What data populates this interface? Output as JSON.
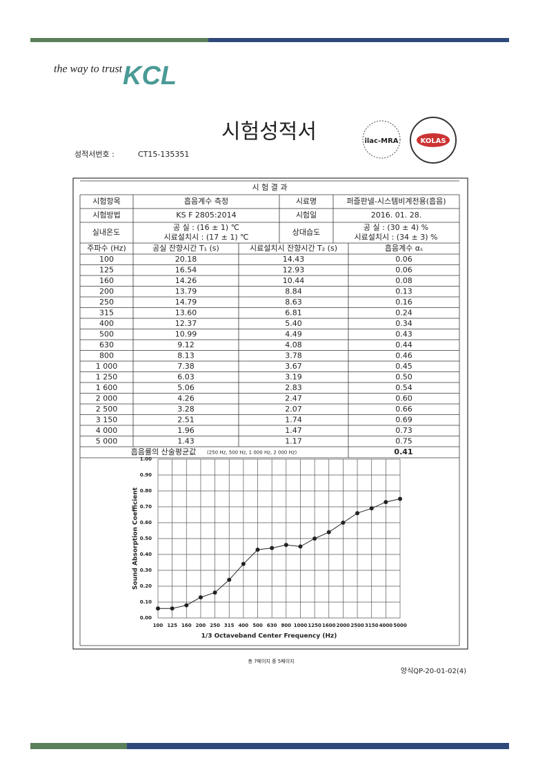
{
  "header": {
    "slogan": "the way to trust",
    "logo": "KCL",
    "title": "시험성적서",
    "report_no_label": "성적서번호 :",
    "report_no": "CT15-135351",
    "badges": [
      "ilac-MRA",
      "KOLAS"
    ]
  },
  "table": {
    "title": "시 험 결 과",
    "info": [
      [
        "시험항목",
        "흡음계수 측정",
        "시료명",
        "퍼즐판넬-시스템비계전용(흡음)"
      ],
      [
        "시험방법",
        "KS F 2805:2014",
        "시험일",
        "2016. 01. 28."
      ]
    ],
    "conditions": {
      "temp_label": "실내온도",
      "temp": [
        "공      실 :  (16 ± 1) ℃",
        "시료설치시 :  (17 ± 1) ℃"
      ],
      "humid_label": "상대습도",
      "humid": [
        "공      실 :  (30 ± 4) %",
        "시료설치시 :  (34 ± 3) %"
      ]
    },
    "columns": [
      "주파수 (Hz)",
      "공실 잔향시간 T₁ (s)",
      "시료설치시 잔향시간 T₂ (s)",
      "흡음계수 αₛ"
    ],
    "rows": [
      [
        "100",
        "20.18",
        "14.43",
        "0.06"
      ],
      [
        "125",
        "16.54",
        "12.93",
        "0.06"
      ],
      [
        "160",
        "14.26",
        "10.44",
        "0.08"
      ],
      [
        "200",
        "13.79",
        "8.84",
        "0.13"
      ],
      [
        "250",
        "14.79",
        "8.63",
        "0.16"
      ],
      [
        "315",
        "13.60",
        "6.81",
        "0.24"
      ],
      [
        "400",
        "12.37",
        "5.40",
        "0.34"
      ],
      [
        "500",
        "10.99",
        "4.49",
        "0.43"
      ],
      [
        "630",
        "9.12",
        "4.08",
        "0.44"
      ],
      [
        "800",
        "8.13",
        "3.78",
        "0.46"
      ],
      [
        "1 000",
        "7.38",
        "3.67",
        "0.45"
      ],
      [
        "1 250",
        "6.03",
        "3.19",
        "0.50"
      ],
      [
        "1 600",
        "5.06",
        "2.83",
        "0.54"
      ],
      [
        "2 000",
        "4.26",
        "2.47",
        "0.60"
      ],
      [
        "2 500",
        "3.28",
        "2.07",
        "0.66"
      ],
      [
        "3 150",
        "2.51",
        "1.74",
        "0.69"
      ],
      [
        "4 000",
        "1.96",
        "1.47",
        "0.73"
      ],
      [
        "5 000",
        "1.43",
        "1.17",
        "0.75"
      ]
    ],
    "average": {
      "label": "흡음률의 산술평균값",
      "note": "(250 Hz, 500 Hz, 1 000 Hz, 2 000 Hz)",
      "value": "0.41"
    }
  },
  "chart_data": {
    "type": "line",
    "x_label": "1/3 Octaveband Center Frequency (Hz)",
    "y_label": "Sound Absorption Coefficient",
    "categories": [
      "100",
      "125",
      "160",
      "200",
      "250",
      "315",
      "400",
      "500",
      "630",
      "800",
      "1000",
      "1250",
      "1600",
      "2000",
      "2500",
      "3150",
      "4000",
      "5000"
    ],
    "values": [
      0.06,
      0.06,
      0.08,
      0.13,
      0.16,
      0.24,
      0.34,
      0.43,
      0.44,
      0.46,
      0.45,
      0.5,
      0.54,
      0.6,
      0.66,
      0.69,
      0.73,
      0.75
    ],
    "color": "#222222",
    "ylim": [
      0,
      1
    ],
    "grid": true,
    "yticks": [
      {
        "value": 0,
        "label": "0.00"
      },
      {
        "value": 0.1,
        "label": "0.10"
      },
      {
        "value": 0.2,
        "label": "0.20"
      },
      {
        "value": 0.3,
        "label": "0.30"
      },
      {
        "value": 0.4,
        "label": "0.40"
      },
      {
        "value": 0.5,
        "label": "0.50"
      },
      {
        "value": 0.6,
        "label": "0.60"
      },
      {
        "value": 0.7,
        "label": "0.70"
      },
      {
        "value": 0.8,
        "label": "0.80"
      },
      {
        "value": 0.9,
        "label": "0.90"
      },
      {
        "value": 1,
        "label": "1.00"
      }
    ]
  },
  "footer": {
    "page": "총 7페이지 중 5페이지",
    "form": "양식QP-20-01-02(4)"
  }
}
